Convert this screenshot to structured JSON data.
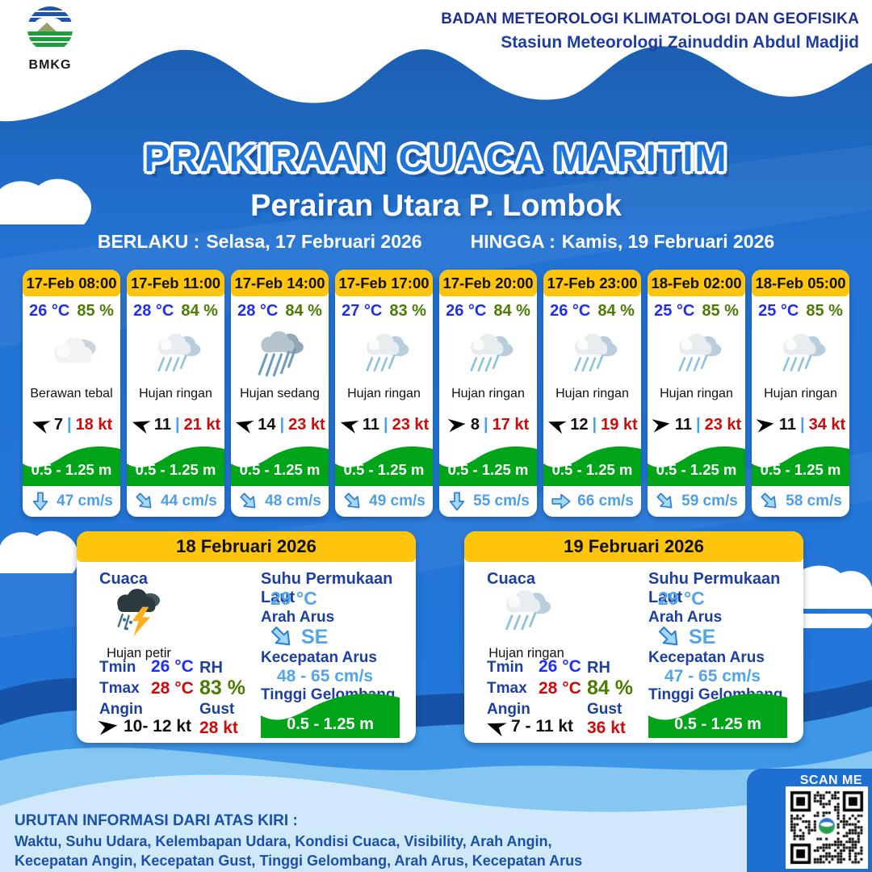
{
  "header": {
    "logo_text": "BMKG",
    "agency_line1": "BADAN METEOROLOGI KLIMATOLOGI DAN GEOFISIKA",
    "agency_line2": "Stasiun Meteorologi Zainuddin Abdul Madjid"
  },
  "title": {
    "main": "PRAKIRAAN CUACA MARITIM",
    "subtitle": "Perairan Utara P. Lombok",
    "valid_from_label": "BERLAKU :",
    "valid_from": "Selasa, 17 Februari 2026",
    "valid_to_label": "HINGGA :",
    "valid_to": "Kamis, 19 Februari 2026"
  },
  "labels": {
    "wind_sep": "|"
  },
  "cards": [
    {
      "time": "17-Feb 08:00",
      "temp": "26 °C",
      "humidity": "85 %",
      "icon": "overcast",
      "desc": "Berawan tebal",
      "wind_avg": "7",
      "wind_gust": "18 kt",
      "wind_deg": 198,
      "wave": "0.5 - 1.25 m",
      "current": "47 cm/s",
      "current_deg": 90
    },
    {
      "time": "17-Feb 11:00",
      "temp": "28 °C",
      "humidity": "84 %",
      "icon": "rain-light",
      "desc": "Hujan ringan",
      "wind_avg": "11",
      "wind_gust": "21 kt",
      "wind_deg": 198,
      "wave": "0.5 - 1.25 m",
      "current": "44 cm/s",
      "current_deg": 45
    },
    {
      "time": "17-Feb 14:00",
      "temp": "28 °C",
      "humidity": "84 %",
      "icon": "rain-moderate",
      "desc": "Hujan sedang",
      "wind_avg": "14",
      "wind_gust": "23 kt",
      "wind_deg": 196,
      "wave": "0.5 - 1.25 m",
      "current": "48 cm/s",
      "current_deg": 45
    },
    {
      "time": "17-Feb 17:00",
      "temp": "27 °C",
      "humidity": "83 %",
      "icon": "rain-light",
      "desc": "Hujan ringan",
      "wind_avg": "11",
      "wind_gust": "23 kt",
      "wind_deg": 196,
      "wave": "0.5 - 1.25 m",
      "current": "49 cm/s",
      "current_deg": 45
    },
    {
      "time": "17-Feb 20:00",
      "temp": "26 °C",
      "humidity": "84 %",
      "icon": "rain-light",
      "desc": "Hujan ringan",
      "wind_avg": "8",
      "wind_gust": "17 kt",
      "wind_deg": 354,
      "wave": "0.5 - 1.25 m",
      "current": "55 cm/s",
      "current_deg": 90
    },
    {
      "time": "17-Feb 23:00",
      "temp": "26 °C",
      "humidity": "84 %",
      "icon": "rain-light",
      "desc": "Hujan ringan",
      "wind_avg": "12",
      "wind_gust": "19 kt",
      "wind_deg": 200,
      "wave": "0.5 - 1.25 m",
      "current": "66 cm/s",
      "current_deg": 0
    },
    {
      "time": "18-Feb 02:00",
      "temp": "25 °C",
      "humidity": "85 %",
      "icon": "rain-light",
      "desc": "Hujan ringan",
      "wind_avg": "11",
      "wind_gust": "23 kt",
      "wind_deg": 352,
      "wave": "0.5 - 1.25 m",
      "current": "59 cm/s",
      "current_deg": 45
    },
    {
      "time": "18-Feb 05:00",
      "temp": "25 °C",
      "humidity": "85 %",
      "icon": "rain-light",
      "desc": "Hujan ringan",
      "wind_avg": "11",
      "wind_gust": "34 kt",
      "wind_deg": 352,
      "wave": "0.5 - 1.25 m",
      "current": "58 cm/s",
      "current_deg": 45
    }
  ],
  "daily": [
    {
      "date": "18 Februari 2026",
      "cuaca_label": "Cuaca",
      "icon": "thunder",
      "desc": "Hujan petir",
      "tmin_label": "Tmin",
      "tmin": "26 °C",
      "tmax_label": "Tmax",
      "tmax": "28 °C",
      "angin_label": "Angin",
      "wind_range": "10- 12 kt",
      "wind_deg": 352,
      "rh_label": "RH",
      "rh": "83 %",
      "gust_label": "Gust",
      "gust": "28 kt",
      "sst_label": "Suhu Permukaan Laut",
      "sst": "29 °C",
      "arah_label": "Arah Arus",
      "arah": "SE",
      "arah_deg": 45,
      "kec_label": "Kecepatan Arus",
      "kec": "48 - 65 cm/s",
      "wave_label": "Tinggi Gelombang",
      "wave": "0.5 - 1.25 m"
    },
    {
      "date": "19 Februari 2026",
      "cuaca_label": "Cuaca",
      "icon": "rain-light",
      "desc": "Hujan ringan",
      "tmin_label": "Tmin",
      "tmin": "26 °C",
      "tmax_label": "Tmax",
      "tmax": "28 °C",
      "angin_label": "Angin",
      "wind_range": "7 - 11 kt",
      "wind_deg": 200,
      "rh_label": "RH",
      "rh": "84 %",
      "gust_label": "Gust",
      "gust": "36 kt",
      "sst_label": "Suhu Permukaan Laut",
      "sst": "29 °C",
      "arah_label": "Arah Arus",
      "arah": "SE",
      "arah_deg": 45,
      "kec_label": "Kecepatan Arus",
      "kec": "47 - 65 cm/s",
      "wave_label": "Tinggi Gelombang",
      "wave": "0.5 - 1.25 m"
    }
  ],
  "footer": {
    "title": "URUTAN INFORMASI DARI ATAS KIRI :",
    "line1": "Waktu, Suhu Udara, Kelembapan Udara, Kondisi Cuaca, Visibility, Arah Angin,",
    "line2": "Kecepatan Angin, Kecepatan Gust, Tinggi Gelombang, Arah Arus, Kecepatan Arus"
  },
  "scan": {
    "label": "SCAN ME"
  },
  "colors": {
    "accent_yellow": "#ffc40c",
    "wave_green": "#00a418",
    "main_blue": "#2273d4",
    "temp_blue": "#1f2ff0",
    "humidity_green": "#4b7d02",
    "gust_red": "#cf0a0a",
    "current_blue": "#4d9fe8",
    "label_navy": "#1d3f9e"
  }
}
